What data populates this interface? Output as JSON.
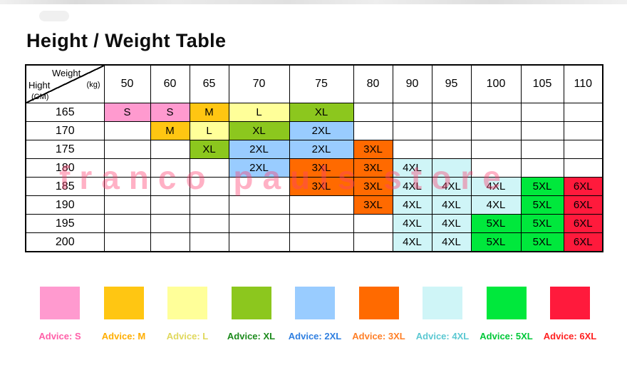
{
  "title": "Height / Weight Table",
  "watermark": "franco pauls store",
  "colors": {
    "S": "#FF9ACF",
    "M": "#FFC612",
    "L": "#FFFF99",
    "XL": "#8CC71E",
    "2XL": "#99CCFF",
    "3XL": "#FF6A00",
    "4XL": "#CFF5F7",
    "5XL": "#00E83C",
    "6XL": "#FF1A3C"
  },
  "chart_data": {
    "type": "table",
    "title": "Height / Weight Table",
    "corner": {
      "top_label": "Weight",
      "top_unit": "(kg)",
      "bottom_label": "Hight",
      "bottom_unit": "(CM)"
    },
    "columns": [
      "50",
      "60",
      "65",
      "70",
      "75",
      "80",
      "90",
      "95",
      "100",
      "105",
      "110"
    ],
    "rows": [
      {
        "height": "165",
        "cells": [
          {
            "text": "S",
            "size": "S"
          },
          {
            "text": "S",
            "size": "S"
          },
          {
            "text": "M",
            "size": "M"
          },
          {
            "text": "L",
            "size": "L"
          },
          {
            "text": "XL",
            "size": "XL"
          },
          null,
          null,
          null,
          null,
          null,
          null
        ]
      },
      {
        "height": "170",
        "cells": [
          null,
          {
            "text": "M",
            "size": "M"
          },
          {
            "text": "L",
            "size": "L"
          },
          {
            "text": "XL",
            "size": "XL"
          },
          {
            "text": "2XL",
            "size": "2XL"
          },
          null,
          null,
          null,
          null,
          null,
          null
        ]
      },
      {
        "height": "175",
        "cells": [
          null,
          null,
          {
            "text": "XL",
            "size": "XL"
          },
          {
            "text": "2XL",
            "size": "2XL"
          },
          {
            "text": "2XL",
            "size": "2XL"
          },
          {
            "text": "3XL",
            "size": "3XL"
          },
          null,
          null,
          null,
          null,
          null
        ]
      },
      {
        "height": "180",
        "cells": [
          null,
          null,
          null,
          {
            "text": "2XL",
            "size": "2XL"
          },
          {
            "text": "3XL",
            "size": "3XL"
          },
          {
            "text": "3XL",
            "size": "3XL"
          },
          {
            "text": "4XL",
            "size": "4XL"
          },
          {
            "text": "",
            "size": "4XL"
          },
          null,
          null,
          null
        ]
      },
      {
        "height": "185",
        "cells": [
          null,
          null,
          null,
          null,
          {
            "text": "3XL",
            "size": "3XL"
          },
          {
            "text": "3XL",
            "size": "3XL"
          },
          {
            "text": "4XL",
            "size": "4XL"
          },
          {
            "text": "4XL",
            "size": "4XL"
          },
          {
            "text": "4XL",
            "size": "4XL"
          },
          {
            "text": "5XL",
            "size": "5XL"
          },
          {
            "text": "6XL",
            "size": "6XL"
          }
        ]
      },
      {
        "height": "190",
        "cells": [
          null,
          null,
          null,
          null,
          null,
          {
            "text": "3XL",
            "size": "3XL"
          },
          {
            "text": "4XL",
            "size": "4XL"
          },
          {
            "text": "4XL",
            "size": "4XL"
          },
          {
            "text": "4XL",
            "size": "4XL"
          },
          {
            "text": "5XL",
            "size": "5XL"
          },
          {
            "text": "6XL",
            "size": "6XL"
          }
        ]
      },
      {
        "height": "195",
        "cells": [
          null,
          null,
          null,
          null,
          null,
          null,
          {
            "text": "4XL",
            "size": "4XL"
          },
          {
            "text": "4XL",
            "size": "4XL"
          },
          {
            "text": "5XL",
            "size": "5XL"
          },
          {
            "text": "5XL",
            "size": "5XL"
          },
          {
            "text": "6XL",
            "size": "6XL"
          }
        ]
      },
      {
        "height": "200",
        "cells": [
          null,
          null,
          null,
          null,
          null,
          null,
          {
            "text": "4XL",
            "size": "4XL"
          },
          {
            "text": "4XL",
            "size": "4XL"
          },
          {
            "text": "5XL",
            "size": "5XL"
          },
          {
            "text": "5XL",
            "size": "5XL"
          },
          {
            "text": "6XL",
            "size": "6XL"
          }
        ]
      }
    ]
  },
  "legend": [
    {
      "size": "S",
      "label": "Advice: S",
      "text_color": "#FF5FA8"
    },
    {
      "size": "M",
      "label": "Advice: M",
      "text_color": "#FFAE00"
    },
    {
      "size": "L",
      "label": "Advice: L",
      "text_color": "#E0D85C"
    },
    {
      "size": "XL",
      "label": "Advice: XL",
      "text_color": "#1C8A1C"
    },
    {
      "size": "2XL",
      "label": "Advice: 2XL",
      "text_color": "#2F7FE0"
    },
    {
      "size": "3XL",
      "label": "Advice: 3XL",
      "text_color": "#FF7F27"
    },
    {
      "size": "4XL",
      "label": "Advice: 4XL",
      "text_color": "#5BC8D2"
    },
    {
      "size": "5XL",
      "label": "Advice: 5XL",
      "text_color": "#00C838"
    },
    {
      "size": "6XL",
      "label": "Advice: 6XL",
      "text_color": "#FF2020"
    }
  ]
}
